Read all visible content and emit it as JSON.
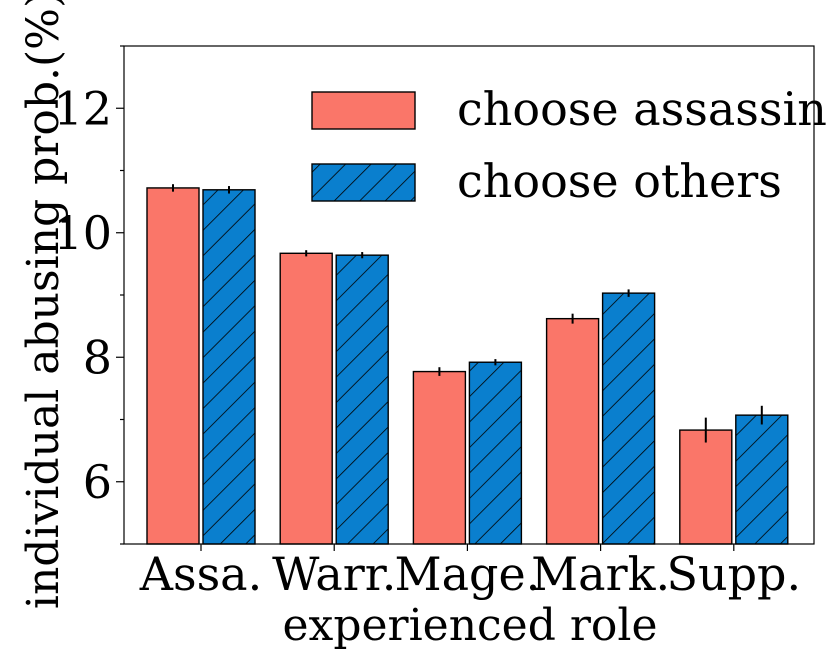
{
  "chart_data": {
    "type": "bar",
    "title": "",
    "xlabel": "experienced role",
    "ylabel": "individual abusing prob.(%)",
    "categories": [
      "Assa.",
      "Warr.",
      "Mage.",
      "Mark.",
      "Supp."
    ],
    "ylim": [
      5,
      13
    ],
    "yticks": [
      6,
      8,
      10,
      12
    ],
    "grid": false,
    "legend_position": "top-right",
    "series": [
      {
        "name": "choose assassin",
        "color": "#fa7669",
        "pattern": "none",
        "values": [
          10.72,
          9.67,
          7.77,
          8.62,
          6.83
        ],
        "errors": [
          0.06,
          0.05,
          0.07,
          0.08,
          0.2
        ]
      },
      {
        "name": "choose others",
        "color": "#0a7fce",
        "pattern": "hatch",
        "values": [
          10.69,
          9.64,
          7.92,
          9.03,
          7.07
        ],
        "errors": [
          0.06,
          0.05,
          0.05,
          0.06,
          0.15
        ]
      }
    ]
  }
}
